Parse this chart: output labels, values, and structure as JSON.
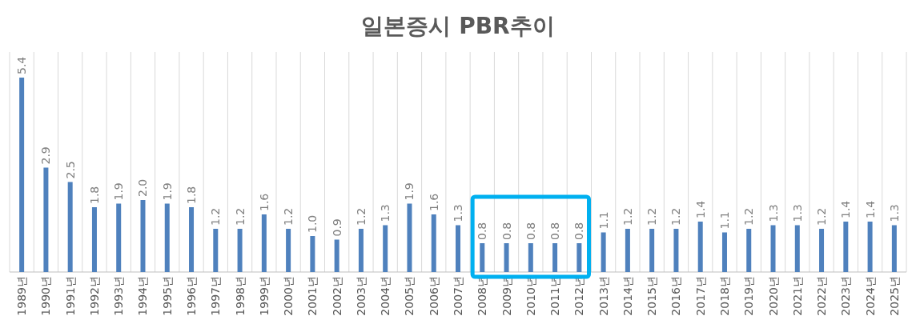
{
  "chart_data": {
    "type": "bar",
    "title": "일본증시 PBR추이",
    "categories": [
      "1989년",
      "1990년",
      "1991년",
      "1992년",
      "1993년",
      "1994년",
      "1995년",
      "1996년",
      "1997년",
      "1998년",
      "1999년",
      "2000년",
      "2001년",
      "2002년",
      "2003년",
      "2004년",
      "2005년",
      "2006년",
      "2007년",
      "2008년",
      "2009년",
      "2010년",
      "2011년",
      "2012년",
      "2013년",
      "2014년",
      "2015년",
      "2016년",
      "2017년",
      "2018년",
      "2019년",
      "2020년",
      "2021년",
      "2022년",
      "2023년",
      "2024년",
      "2025년"
    ],
    "values": [
      5.4,
      2.9,
      2.5,
      1.8,
      1.9,
      2.0,
      1.9,
      1.8,
      1.2,
      1.2,
      1.6,
      1.2,
      1.0,
      0.9,
      1.2,
      1.3,
      1.9,
      1.6,
      1.3,
      0.8,
      0.8,
      0.8,
      0.8,
      0.8,
      1.1,
      1.2,
      1.2,
      1.2,
      1.4,
      1.1,
      1.2,
      1.3,
      1.3,
      1.2,
      1.4,
      1.4,
      1.3
    ],
    "color": "#4f81bd",
    "value_labels": [
      "5.4",
      "2.9",
      "2.5",
      "1.8",
      "1.9",
      "2.0",
      "1.9",
      "1.8",
      "1.2",
      "1.2",
      "1.6",
      "1.2",
      "1.0",
      "0.9",
      "1.2",
      "1.3",
      "1.9",
      "1.6",
      "1.3",
      "0.8",
      "0.8",
      "0.8",
      "0.8",
      "0.8",
      "1.1",
      "1.2",
      "1.2",
      "1.2",
      "1.4",
      "1.1",
      "1.2",
      "1.3",
      "1.3",
      "1.2",
      "1.4",
      "1.4",
      "1.3"
    ],
    "grid": "x"
  }
}
